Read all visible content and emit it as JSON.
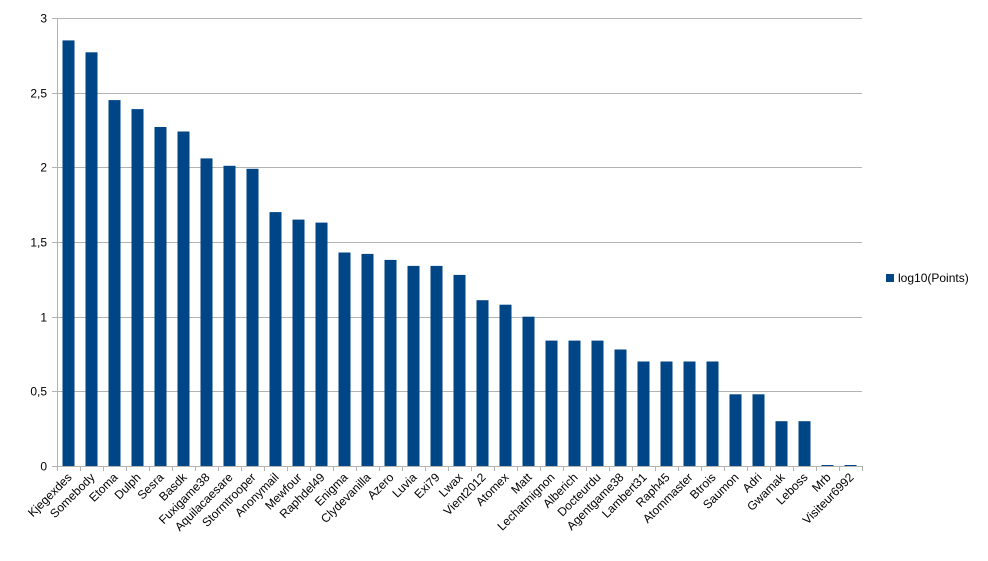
{
  "chart_data": {
    "type": "bar",
    "title": "",
    "xlabel": "",
    "ylabel": "",
    "ylim": [
      0,
      3
    ],
    "yticks": [
      0,
      0.5,
      1,
      1.5,
      2,
      2.5,
      3
    ],
    "ytick_labels": [
      "0",
      "0,5",
      "1",
      "1,5",
      "2",
      "2,5",
      "3"
    ],
    "grid": true,
    "legend_position": "right",
    "bar_color": "#004586",
    "categories": [
      "Kjegexdes",
      "Somebody",
      "Etoma",
      "Dulph",
      "Sesra",
      "Basdk",
      "Fuxigame38",
      "Aquilacaesare",
      "Stormtrooper",
      "Anonymail",
      "Mewfour",
      "Raphdel49",
      "Enigma",
      "Clydevanilla",
      "Azero",
      "Luvia",
      "Exi79",
      "Lwax",
      "Vient2012",
      "Atomex",
      "Matt",
      "Lechatmignon",
      "Alberich",
      "Docteurdu",
      "Agentgame38",
      "Lambert31",
      "Raph45",
      "Atommaster",
      "Btrois",
      "Saumon",
      "Adri",
      "Gwamak",
      "Leboss",
      "Mrb",
      "Visiteur6992"
    ],
    "series": [
      {
        "name": "log10(Points)",
        "values": [
          2.85,
          2.77,
          2.45,
          2.39,
          2.27,
          2.24,
          2.06,
          2.01,
          1.99,
          1.7,
          1.65,
          1.63,
          1.43,
          1.42,
          1.38,
          1.34,
          1.34,
          1.28,
          1.11,
          1.08,
          1.0,
          0.84,
          0.84,
          0.84,
          0.78,
          0.7,
          0.7,
          0.7,
          0.7,
          0.48,
          0.48,
          0.3,
          0.3,
          0.0,
          0.0
        ]
      }
    ]
  }
}
